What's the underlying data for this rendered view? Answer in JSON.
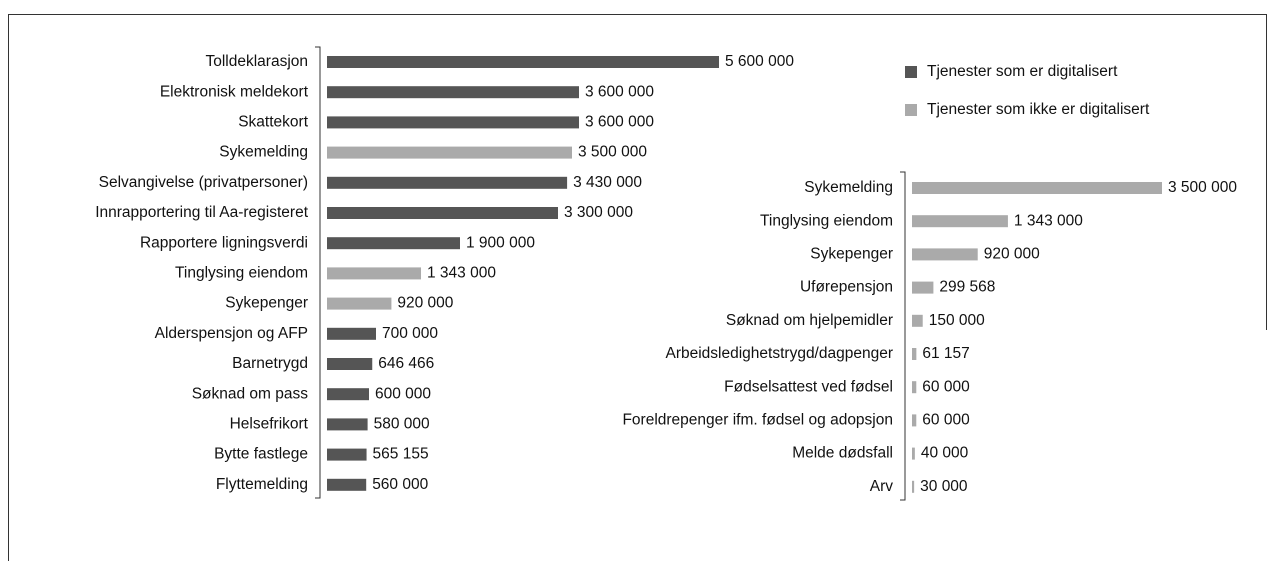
{
  "chart_data": [
    {
      "type": "bar",
      "orientation": "horizontal",
      "legend": "upper right",
      "categories": [
        "Tolldeklarasjon",
        "Elektronisk meldekort",
        "Skattekort",
        "Sykemelding",
        "Selvangivelse (privatpersoner)",
        "Innrapportering til Aa-registeret",
        "Rapportere ligningsverdi",
        "Tinglysing eiendom",
        "Sykepenger",
        "Alderspensjon og AFP",
        "Barnetrygd",
        "Søknad om pass",
        "Helsefrikort",
        "Bytte fastlege",
        "Flyttemelding"
      ],
      "series": [
        {
          "name": "Tjenester som er digitalisert",
          "color": "#555555",
          "values": [
            5600000,
            3600000,
            3600000,
            null,
            3430000,
            3300000,
            1900000,
            null,
            null,
            700000,
            646466,
            600000,
            580000,
            565155,
            560000
          ],
          "value_labels": [
            "5 600 000",
            "3 600 000",
            "3 600 000",
            null,
            "3 430 000",
            "3 300 000",
            "1 900 000",
            null,
            null,
            "700 000",
            "646 466",
            "600 000",
            "580 000",
            "565 155",
            "560 000"
          ]
        },
        {
          "name": "Tjenester som ikke er digitalisert",
          "color": "#aaaaaa",
          "values": [
            null,
            null,
            null,
            3500000,
            null,
            null,
            null,
            1343000,
            920000,
            null,
            null,
            null,
            null,
            null,
            null
          ],
          "value_labels": [
            null,
            null,
            null,
            "3 500 000",
            null,
            null,
            null,
            "1 343 000",
            "920 000",
            null,
            null,
            null,
            null,
            null,
            null
          ]
        }
      ]
    },
    {
      "type": "bar",
      "orientation": "horizontal",
      "color": "#aaaaaa",
      "categories": [
        "Sykemelding",
        "Tinglysing eiendom",
        "Sykepenger",
        "Uførepensjon",
        "Søknad om hjelpemidler",
        "Arbeidsledighetstrygd/dagpenger",
        "Fødselsattest ved fødsel",
        "Foreldrepenger ifm. fødsel og adopsjon",
        "Melde dødsfall",
        "Arv"
      ],
      "values": [
        3500000,
        1343000,
        920000,
        299568,
        150000,
        61157,
        60000,
        60000,
        40000,
        30000
      ],
      "value_labels": [
        "3 500 000",
        "1 343 000",
        "920 000",
        "299 568",
        "150 000",
        "61 157",
        "60 000",
        "60 000",
        "40 000",
        "30 000"
      ]
    }
  ]
}
